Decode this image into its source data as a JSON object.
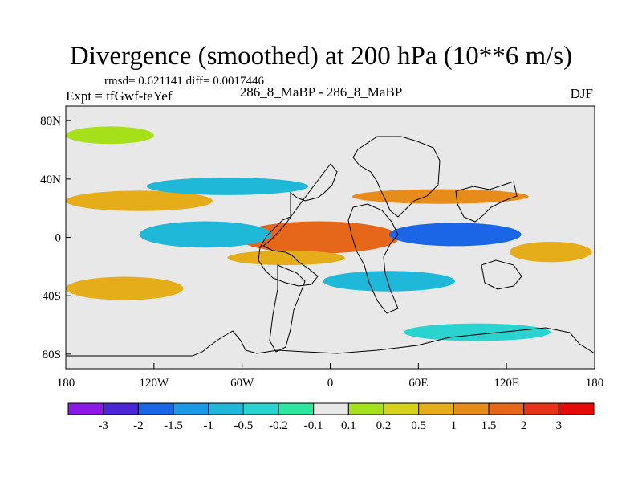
{
  "chart_data": {
    "type": "heatmap",
    "title": "Divergence (smoothed) at 200 hPa (10**6 m/s)",
    "stats_line": "rmsd= 0.621141 diff= 0.0017446",
    "left_label": "Expt = tfGwf-teYef",
    "center_label": "286_8_MaBP - 286_8_MaBP",
    "right_label": "DJF",
    "x_ticks": [
      {
        "value": -180,
        "label": "180"
      },
      {
        "value": -120,
        "label": "120W"
      },
      {
        "value": -60,
        "label": "60W"
      },
      {
        "value": 0,
        "label": "0"
      },
      {
        "value": 60,
        "label": "60E"
      },
      {
        "value": 120,
        "label": "120E"
      },
      {
        "value": 180,
        "label": "180"
      }
    ],
    "y_ticks": [
      {
        "value": 80,
        "label": "80N"
      },
      {
        "value": 40,
        "label": "40N"
      },
      {
        "value": 0,
        "label": "0"
      },
      {
        "value": -40,
        "label": "40S"
      },
      {
        "value": -80,
        "label": "80S"
      }
    ],
    "xlim": [
      -180,
      180
    ],
    "ylim": [
      -90,
      90
    ],
    "colorbar_labels": [
      "-3",
      "-2",
      "-1.5",
      "-1",
      "-0.5",
      "-0.2",
      "-0.1",
      "0.1",
      "0.2",
      "0.5",
      "1",
      "1.5",
      "2",
      "3"
    ],
    "colorbar_colors": [
      "#8c1ae6",
      "#4a26d6",
      "#1a66e6",
      "#1a99e6",
      "#20b8d8",
      "#2ad3cf",
      "#2ee6a0",
      "#e8e8e8",
      "#a6e01a",
      "#d6d21a",
      "#e6ad1a",
      "#e68c1a",
      "#e6661a",
      "#e6331a",
      "#e60a0a"
    ],
    "background_color": "#e8e8e8",
    "features": [
      {
        "name": "equatorial-positive-center",
        "lon": -10,
        "lat": 0,
        "rlon": 35,
        "rlat": 7,
        "level": 14
      },
      {
        "name": "equatorial-positive-ring",
        "lon": -8,
        "lat": 0,
        "rlon": 55,
        "rlat": 11,
        "level": 12
      },
      {
        "name": "indian-ocean-negative-center",
        "lon": 75,
        "lat": 1,
        "rlon": 22,
        "rlat": 5,
        "level": 0
      },
      {
        "name": "indian-ocean-negative",
        "lon": 85,
        "lat": 2,
        "rlon": 45,
        "rlat": 8,
        "level": 2
      },
      {
        "name": "pacific-negative-center",
        "lon": -70,
        "lat": 0,
        "rlon": 8,
        "rlat": 4,
        "level": 1
      },
      {
        "name": "pacific-negative",
        "lon": -85,
        "lat": 2,
        "rlon": 45,
        "rlat": 9,
        "level": 4
      },
      {
        "name": "north-positive-band",
        "lon": -130,
        "lat": 25,
        "rlon": 50,
        "rlat": 7,
        "level": 10
      },
      {
        "name": "north-negative-band",
        "lon": -70,
        "lat": 35,
        "rlon": 55,
        "rlat": 6,
        "level": 4
      },
      {
        "name": "north-positive-band-east",
        "lon": 75,
        "lat": 28,
        "rlon": 60,
        "rlat": 5,
        "level": 11
      },
      {
        "name": "south-positive-band",
        "lon": -30,
        "lat": -14,
        "rlon": 40,
        "rlat": 5,
        "level": 10
      },
      {
        "name": "south-pacific-positive",
        "lon": 150,
        "lat": -10,
        "rlon": 28,
        "rlat": 7,
        "level": 10
      },
      {
        "name": "south-negative-band",
        "lon": 40,
        "lat": -30,
        "rlon": 45,
        "rlat": 7,
        "level": 4
      },
      {
        "name": "southern-ocean-positive",
        "lon": -140,
        "lat": -35,
        "rlon": 40,
        "rlat": 8,
        "level": 10
      },
      {
        "name": "antarctic-negative",
        "lon": 100,
        "lat": -65,
        "rlon": 50,
        "rlat": 6,
        "level": 5
      },
      {
        "name": "high-north-green",
        "lon": -150,
        "lat": 70,
        "rlon": 30,
        "rlat": 6,
        "level": 8
      }
    ]
  }
}
